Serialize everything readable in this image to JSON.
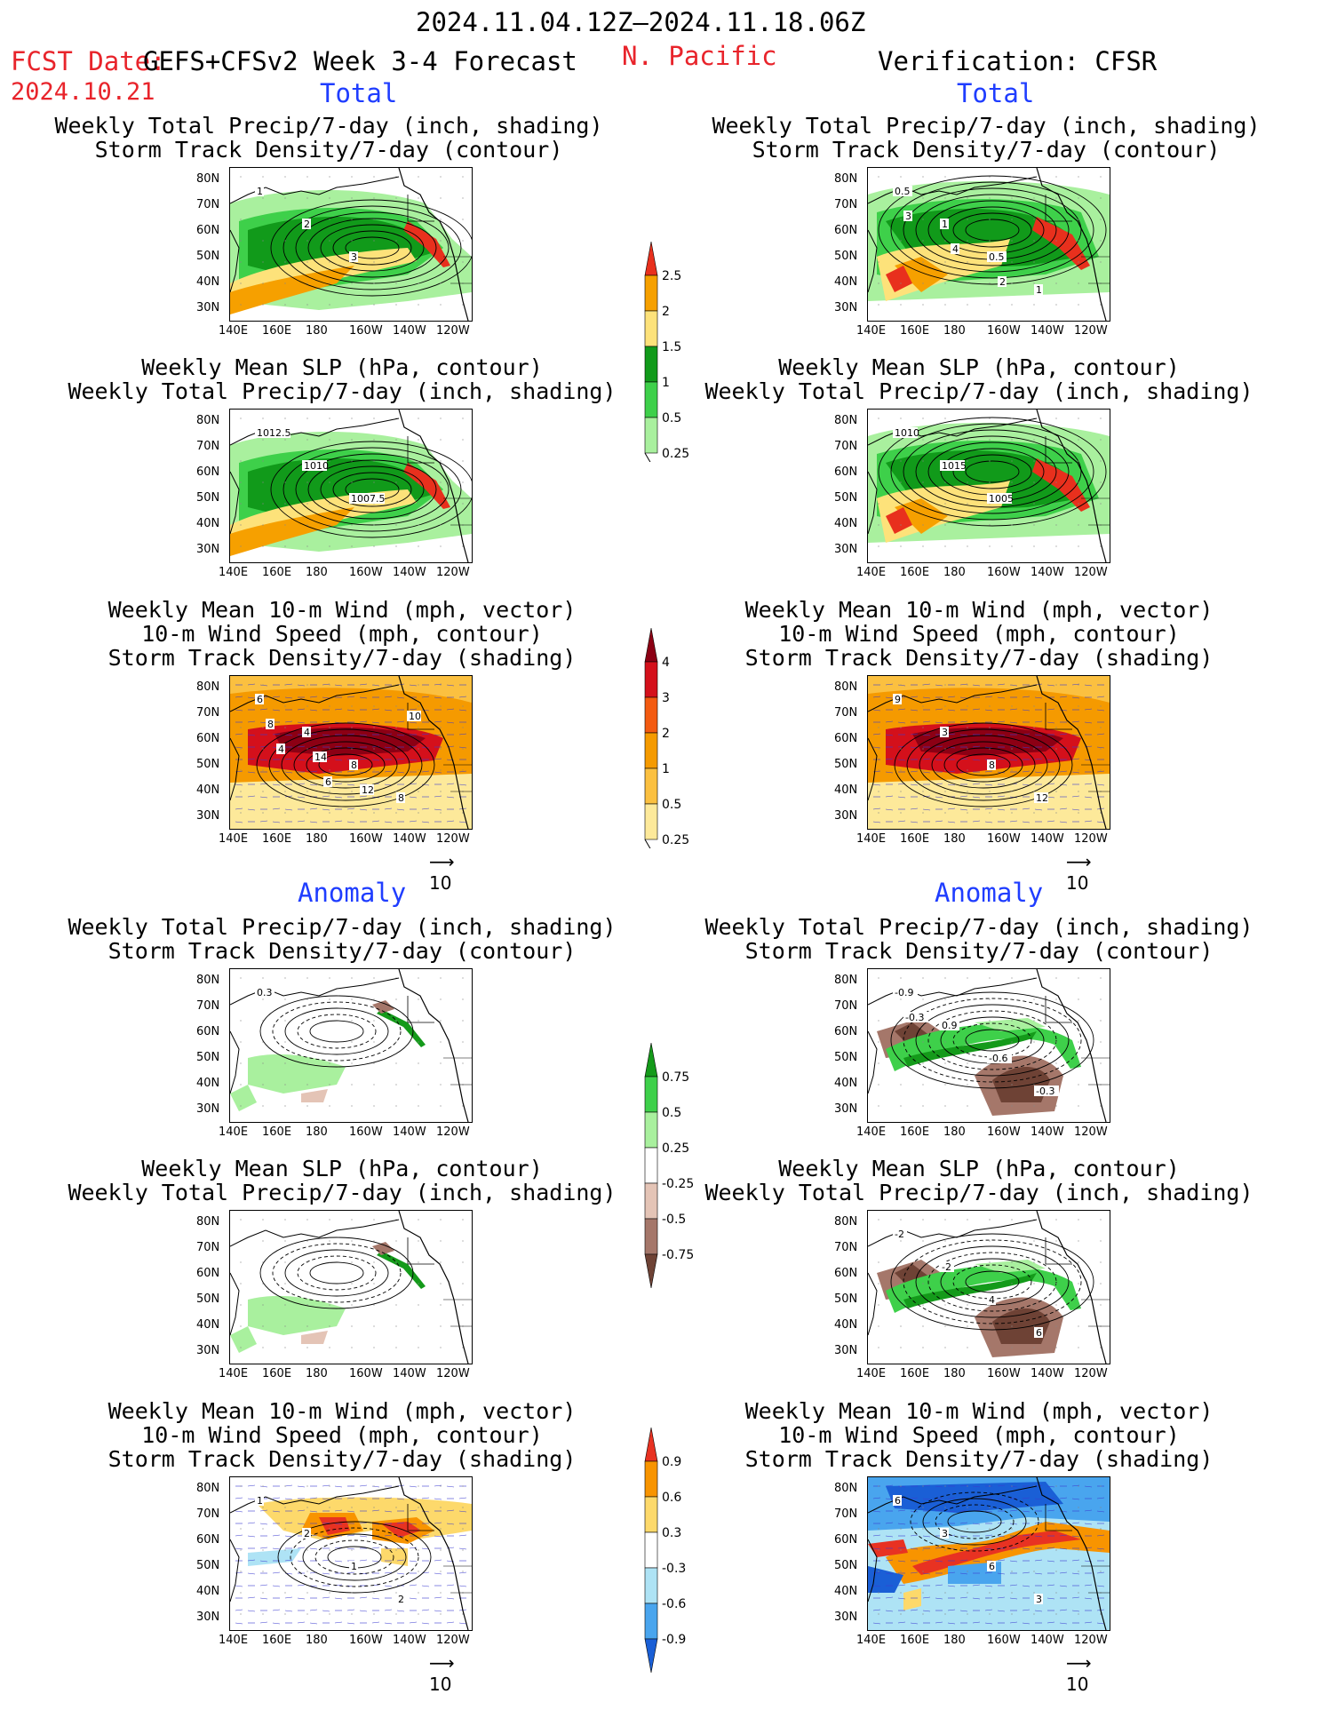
{
  "header": {
    "period": "2024.11.04.12Z–2024.11.18.06Z",
    "fcst_label": "FCST Date:",
    "fcst_date": "2024.10.21",
    "model": "GEFS+CFSv2 Week 3-4 Forecast",
    "region": "N. Pacific",
    "verification": "Verification: CFSR"
  },
  "sections": {
    "total_left": "Total",
    "total_right": "Total",
    "anomaly_left": "Anomaly",
    "anomaly_right": "Anomaly"
  },
  "panel_titles": {
    "precip_track": [
      "Weekly Total Precip/7-day (inch, shading)",
      "Storm Track Density/7-day (contour)"
    ],
    "slp_precip": [
      "Weekly Mean SLP (hPa, contour)",
      "Weekly Total Precip/7-day (inch, shading)"
    ],
    "wind_track": [
      "Weekly Mean 10-m Wind (mph, vector)",
      "10-m Wind Speed (mph, contour)",
      "Storm Track Density/7-day (shading)"
    ]
  },
  "axes": {
    "lat_ticks": [
      "80N",
      "70N",
      "60N",
      "50N",
      "40N",
      "30N"
    ],
    "lon_ticks": [
      "140E",
      "160E",
      "180",
      "160W",
      "140W",
      "120W"
    ]
  },
  "contour_labels": {
    "p1": [
      "1",
      "2",
      "3"
    ],
    "p2": [
      "1012.5",
      "1010",
      "1007.5"
    ],
    "p3": [
      "6",
      "4",
      "8",
      "8",
      "8",
      "14",
      "12",
      "10",
      "4",
      "6"
    ],
    "p4": [
      "0.5",
      "1",
      "0.5",
      "1",
      "3",
      "4",
      "2"
    ],
    "p5": [
      "1010",
      "1015",
      "1005"
    ],
    "p6": [
      "9",
      "3",
      "8",
      "12"
    ],
    "a1": [
      "0.3"
    ],
    "a3": [
      "1",
      "2",
      "1",
      "2"
    ],
    "a4": [
      "-0.9",
      "0.9",
      "-0.6",
      "-0.3",
      "-0.3"
    ],
    "a5": [
      "-2",
      "-2",
      "4",
      "6"
    ],
    "a6": [
      "6",
      "3",
      "6",
      "3"
    ]
  },
  "colorbars": {
    "precip_total": {
      "labels": [
        "2.5",
        "2",
        "1.5",
        "1",
        "0.5",
        "0.25"
      ],
      "colors": [
        "#e8301d",
        "#f6a000",
        "#fde27a",
        "#119a1a",
        "#3ed04a",
        "#a9f09e"
      ]
    },
    "track_total": {
      "labels": [
        "4",
        "3",
        "2",
        "1",
        "0.5",
        "0.25"
      ],
      "colors": [
        "#8c0014",
        "#d4101b",
        "#f35a10",
        "#f59a00",
        "#fbc040",
        "#fde99a"
      ]
    },
    "precip_anom": {
      "labels": [
        "0.75",
        "0.5",
        "0.25",
        "-0.25",
        "-0.5",
        "-0.75"
      ],
      "colors": [
        "#149a1a",
        "#3ed04a",
        "#a9f09e",
        "#ffffff",
        "#e4c4b6",
        "#a5776a",
        "#6e4235"
      ]
    },
    "track_anom": {
      "labels": [
        "0.9",
        "0.6",
        "0.3",
        "-0.3",
        "-0.6",
        "-0.9"
      ],
      "colors": [
        "#e83222",
        "#f89400",
        "#fdd96b",
        "#ffffff",
        "#aee3f5",
        "#49a5ee",
        "#1a5fd6"
      ]
    },
    "vector_ref": "10"
  }
}
